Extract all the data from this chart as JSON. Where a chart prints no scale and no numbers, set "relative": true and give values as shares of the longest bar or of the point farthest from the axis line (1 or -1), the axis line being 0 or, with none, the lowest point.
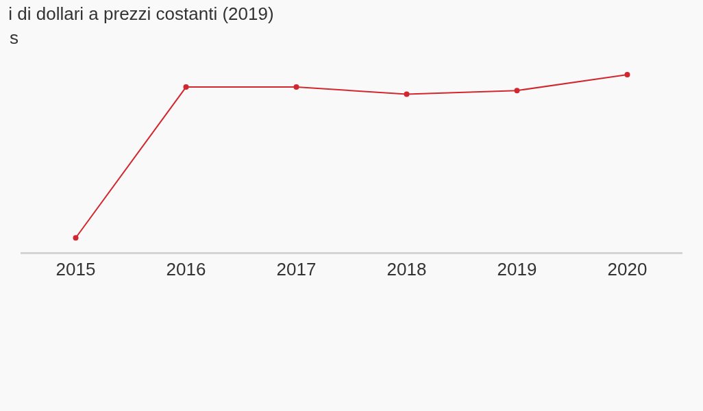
{
  "chart_data": {
    "type": "line",
    "title": "i di dollari a prezzi costanti (2019)",
    "subtitle": "s",
    "categories": [
      "2015",
      "2016",
      "2017",
      "2018",
      "2019",
      "2020"
    ],
    "values": [
      0.08,
      0.93,
      0.93,
      0.89,
      0.91,
      1
    ],
    "color": "#d0282e",
    "relative": true,
    "marker": "circle",
    "line_style": "solid"
  }
}
